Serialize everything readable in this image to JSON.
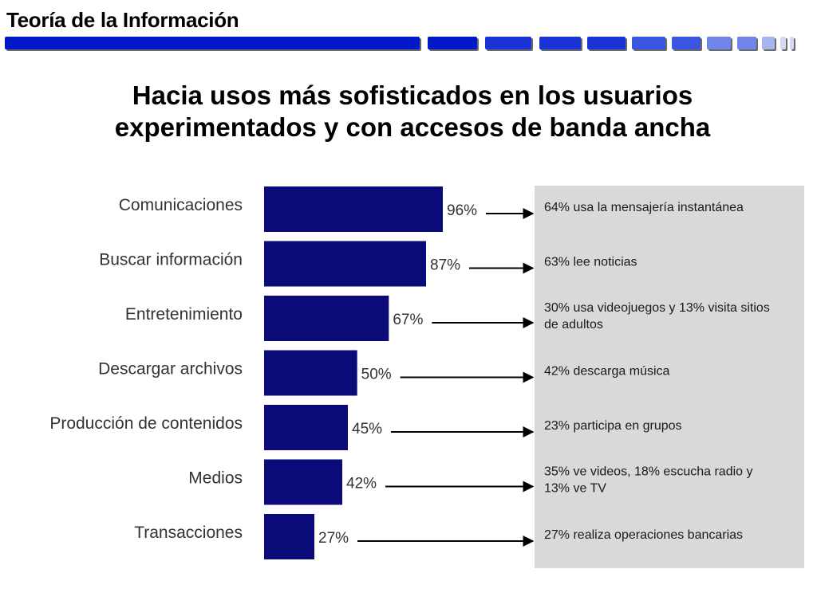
{
  "header": {
    "title": "Teoría de la Información",
    "bar_colors": [
      "#0018c8",
      "#1a33d6",
      "#3a55e0",
      "#6f85ea",
      "#a8b4ee",
      "#d4d9f2"
    ]
  },
  "slide": {
    "title_line1": "Hacia usos más sofisticados en los usuarios",
    "title_line2": "experimentados y con accesos de banda ancha"
  },
  "colors": {
    "bar": "#0a0a78",
    "panel": "#d9d9d9",
    "arrow": "#000000"
  },
  "chart_data": {
    "type": "bar",
    "orientation": "horizontal",
    "categories": [
      "Comunicaciones",
      "Buscar información",
      "Entretenimiento",
      "Descargar archivos",
      "Producción de contenidos",
      "Medios",
      "Transacciones"
    ],
    "values": [
      96,
      87,
      67,
      50,
      45,
      42,
      27
    ],
    "value_labels": [
      "96%",
      "87%",
      "67%",
      "50%",
      "45%",
      "42%",
      "27%"
    ],
    "annotations": [
      [
        "64% usa la mensajería instantánea"
      ],
      [
        "63% lee noticias"
      ],
      [
        "30% usa videojuegos y 13% visita sitios",
        "de adultos"
      ],
      [
        "42% descarga música"
      ],
      [
        "23% participa en grupos"
      ],
      [
        "35% ve videos, 18% escucha radio y",
        "13% ve TV"
      ],
      [
        "27% realiza operaciones bancarias"
      ]
    ],
    "title": "",
    "xlabel": "",
    "ylabel": "",
    "xlim": [
      0,
      100
    ],
    "grid": false,
    "legend": "none"
  }
}
